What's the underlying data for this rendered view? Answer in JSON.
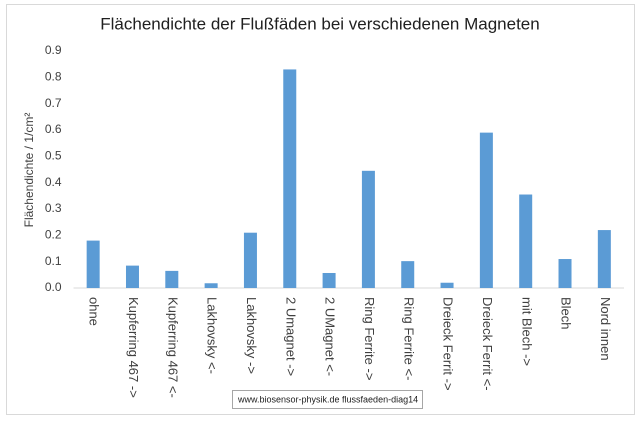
{
  "chart_data": {
    "type": "bar",
    "title": "Flächendichte der Flußfäden bei verschiedenen Magneten",
    "y_label": "Flächendichte  / 1/cm²",
    "annotation": "www.biosensor-physik.de  flussfaeden-diag14",
    "categories": [
      "ohne",
      "Kupferring 467 ->",
      "Kupferring 467 <-",
      "Lakhovsky <-",
      "Lakhovsky ->",
      "2 Umagnet ->",
      "2 UMagnet <-",
      "Ring Ferrite ->",
      "Ring Ferrite <-",
      "Dreieck Ferrit ->",
      "Dreieck Ferrit <-",
      "mit Blech ->",
      "Blech",
      "Nord innen"
    ],
    "values": [
      0.18,
      0.085,
      0.065,
      0.018,
      0.21,
      0.83,
      0.057,
      0.445,
      0.102,
      0.02,
      0.59,
      0.355,
      0.11,
      0.22
    ],
    "color": "#5b9bd5",
    "ylim": [
      0,
      0.9
    ],
    "yticks": [
      {
        "value": 0,
        "label": "0.0"
      },
      0.1,
      0.2,
      0.3,
      0.4,
      0.5,
      0.6,
      0.7,
      0.8,
      0.9
    ],
    "grid": false
  }
}
